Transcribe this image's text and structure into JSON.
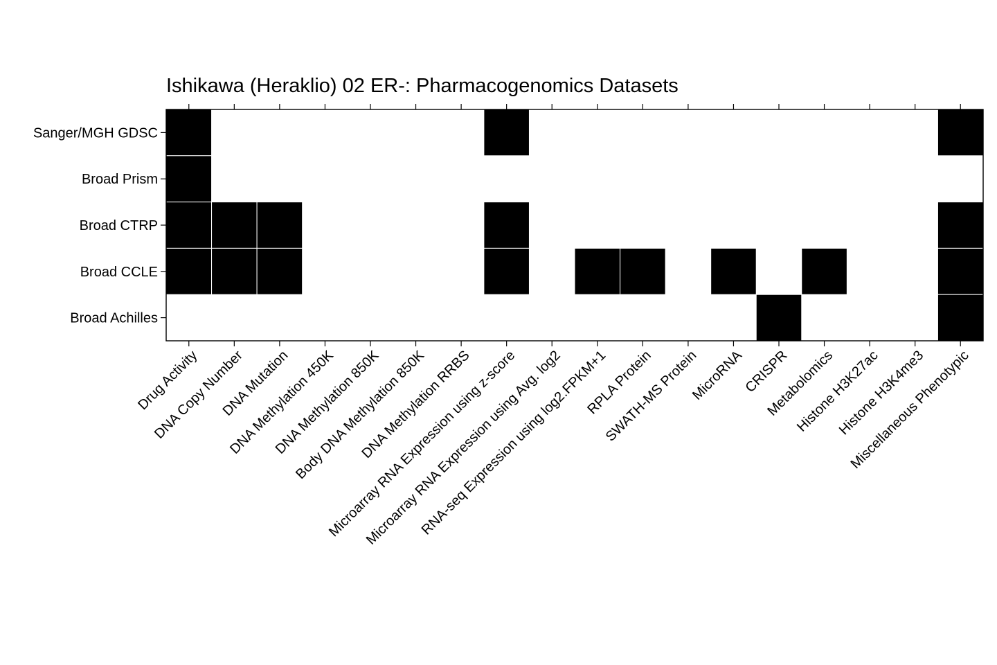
{
  "chart_data": {
    "type": "heatmap",
    "title": "Ishikawa (Heraklio) 02 ER-: Pharmacogenomics Datasets",
    "rows": [
      "Sanger/MGH GDSC",
      "Broad Prism",
      "Broad CTRP",
      "Broad CCLE",
      "Broad Achilles"
    ],
    "columns": [
      "Drug Activity",
      "DNA Copy Number",
      "DNA Mutation",
      "DNA Methylation 450K",
      "DNA Methylation 850K",
      "Body DNA Methylation 850K",
      "DNA Methylation RRBS",
      "Microarray RNA Expression using z-score",
      "Microarray RNA Expression using Avg. log2",
      "RNA-seq Expression using log2.FPKM+1",
      "RPLA Protein",
      "SWATH-MS Protein",
      "MicroRNA",
      "CRISPR",
      "Metabolomics",
      "Histone H3K27ac",
      "Histone H3K4me3",
      "Miscellaneous Phenotypic"
    ],
    "matrix": [
      [
        1,
        0,
        0,
        0,
        0,
        0,
        0,
        1,
        0,
        0,
        0,
        0,
        0,
        0,
        0,
        0,
        0,
        1
      ],
      [
        1,
        0,
        0,
        0,
        0,
        0,
        0,
        0,
        0,
        0,
        0,
        0,
        0,
        0,
        0,
        0,
        0,
        0
      ],
      [
        1,
        1,
        1,
        0,
        0,
        0,
        0,
        1,
        0,
        0,
        0,
        0,
        0,
        0,
        0,
        0,
        0,
        1
      ],
      [
        1,
        1,
        1,
        0,
        0,
        0,
        0,
        1,
        0,
        1,
        1,
        0,
        1,
        0,
        1,
        0,
        0,
        1
      ],
      [
        0,
        0,
        0,
        0,
        0,
        0,
        0,
        0,
        0,
        0,
        0,
        0,
        0,
        1,
        0,
        0,
        0,
        1
      ]
    ],
    "cell_color": "#000000",
    "cell_stroke": "#ffffff",
    "background": "#ffffff",
    "border_color": "#000000",
    "tick_color": "#000000",
    "x_label_rotation": -45,
    "legend_position": "none"
  }
}
